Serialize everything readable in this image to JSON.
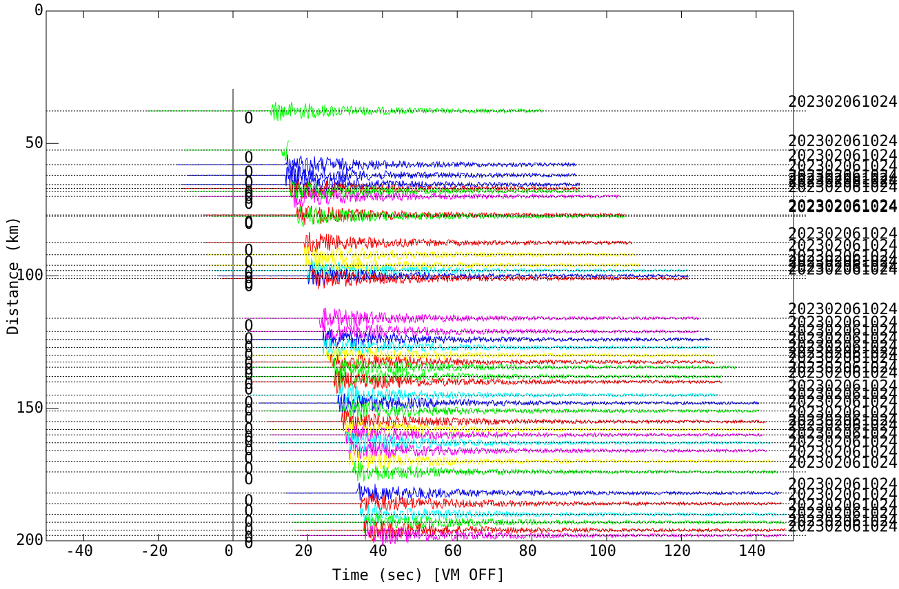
{
  "chart_data": {
    "type": "record-section",
    "x_label": "Time (sec)",
    "x_note": "[VM OFF]",
    "y_label": "Distance (km)",
    "xlim": [
      -50,
      150
    ],
    "ylim": [
      0,
      200
    ],
    "xticks": [
      -40,
      -20,
      0,
      20,
      40,
      60,
      80,
      100,
      120,
      140
    ],
    "yticks": [
      0,
      50,
      100,
      150,
      200
    ],
    "pick_label": "O",
    "pick_time": 2,
    "traces": [
      {
        "distance": 37.7,
        "color": "#00ff00",
        "start": -23,
        "onset": 10,
        "end": 83,
        "label": "202302061024"
      },
      {
        "distance": 52.5,
        "color": "#00ff00",
        "start": -13,
        "onset": 13,
        "end": 15,
        "label": "202302061024"
      },
      {
        "distance": 58,
        "color": "#0000ff",
        "start": -15,
        "onset": 14,
        "end": 92,
        "label": "202302061024"
      },
      {
        "distance": 62,
        "color": "#0000ff",
        "start": -12,
        "onset": 14,
        "end": 92,
        "label": "202302061024"
      },
      {
        "distance": 65.5,
        "color": "#0000ff",
        "start": -14,
        "onset": 15,
        "end": 93,
        "label": "202302061024"
      },
      {
        "distance": 67,
        "color": "#ff0000",
        "start": -14,
        "onset": 15,
        "end": 93,
        "label": "202302061024"
      },
      {
        "distance": 68,
        "color": "#00ff00",
        "start": -12,
        "onset": 15,
        "end": 93,
        "label": "202302061024"
      },
      {
        "distance": 70,
        "color": "#ff00ff",
        "start": -9,
        "onset": 16,
        "end": 104,
        "label": "202302061024"
      },
      {
        "distance": 77,
        "color": "#ff0000",
        "start": -8,
        "onset": 17,
        "end": 105,
        "label": "202302061024"
      },
      {
        "distance": 77.5,
        "color": "#00ff00",
        "start": -6,
        "onset": 17,
        "end": 105,
        "label": "202302061024"
      },
      {
        "distance": 87.5,
        "color": "#ff0000",
        "start": -8,
        "onset": 19,
        "end": 107,
        "label": "202302061024"
      },
      {
        "distance": 92,
        "color": "#ffff00",
        "start": -7,
        "onset": 19,
        "end": 108,
        "label": "202302061024"
      },
      {
        "distance": 96,
        "color": "#ffff00",
        "start": -6,
        "onset": 20,
        "end": 109,
        "label": "202302061024"
      },
      {
        "distance": 98,
        "color": "#00ffff",
        "start": -5,
        "onset": 20,
        "end": 122,
        "label": "202302061024"
      },
      {
        "distance": 100,
        "color": "#0000ff",
        "start": -4,
        "onset": 20,
        "end": 122,
        "label": "202302061024"
      },
      {
        "distance": 101,
        "color": "#ff0000",
        "start": -3,
        "onset": 21,
        "end": 122,
        "label": "202302061024"
      },
      {
        "distance": 116,
        "color": "#ff00ff",
        "start": 3,
        "onset": 23,
        "end": 125,
        "label": "202302061024"
      },
      {
        "distance": 121,
        "color": "#ff00ff",
        "start": 4,
        "onset": 24,
        "end": 125,
        "label": "202302061024"
      },
      {
        "distance": 124,
        "color": "#0000ff",
        "start": 5,
        "onset": 24,
        "end": 128,
        "label": "202302061024"
      },
      {
        "distance": 127,
        "color": "#00ffff",
        "start": 6,
        "onset": 24,
        "end": 128,
        "label": "202302061024"
      },
      {
        "distance": 130,
        "color": "#ffff00",
        "start": 5,
        "onset": 25,
        "end": 129,
        "label": "202302061024"
      },
      {
        "distance": 132.5,
        "color": "#ff0000",
        "start": 4,
        "onset": 26,
        "end": 129,
        "label": "202302061024"
      },
      {
        "distance": 134.5,
        "color": "#00ff00",
        "start": 5,
        "onset": 27,
        "end": 135,
        "label": "202302061024"
      },
      {
        "distance": 138,
        "color": "#00ff00",
        "start": 3,
        "onset": 27,
        "end": 131,
        "label": "202302061024"
      },
      {
        "distance": 140,
        "color": "#ff0000",
        "start": 5,
        "onset": 27,
        "end": 131,
        "label": "202302061024"
      },
      {
        "distance": 145,
        "color": "#00ffff",
        "start": 5,
        "onset": 28,
        "end": 130,
        "label": "202302061024"
      },
      {
        "distance": 148,
        "color": "#0000ff",
        "start": 7,
        "onset": 28,
        "end": 141,
        "label": "202302061024"
      },
      {
        "distance": 151,
        "color": "#00ff00",
        "start": 8,
        "onset": 29,
        "end": 141,
        "label": "202302061024"
      },
      {
        "distance": 155,
        "color": "#ff0000",
        "start": 9,
        "onset": 29,
        "end": 143,
        "label": "202302061024"
      },
      {
        "distance": 158,
        "color": "#ffff00",
        "start": 10,
        "onset": 30,
        "end": 142,
        "label": "202302061024"
      },
      {
        "distance": 160,
        "color": "#ff00ff",
        "start": 10,
        "onset": 30,
        "end": 142,
        "label": "202302061024"
      },
      {
        "distance": 163,
        "color": "#00ffff",
        "start": 12,
        "onset": 30,
        "end": 144,
        "label": "202302061024"
      },
      {
        "distance": 166,
        "color": "#ff00ff",
        "start": 12,
        "onset": 31,
        "end": 143,
        "label": "202302061024"
      },
      {
        "distance": 170,
        "color": "#ffff00",
        "start": 13,
        "onset": 31,
        "end": 145,
        "label": "202302061024"
      },
      {
        "distance": 174,
        "color": "#00ff00",
        "start": 14,
        "onset": 32,
        "end": 146,
        "label": "202302061024"
      },
      {
        "distance": 182,
        "color": "#0000ff",
        "start": 14,
        "onset": 33,
        "end": 147,
        "label": "202302061024"
      },
      {
        "distance": 186,
        "color": "#ff0000",
        "start": 15,
        "onset": 34,
        "end": 147,
        "label": "202302061024"
      },
      {
        "distance": 190,
        "color": "#00ffff",
        "start": 15,
        "onset": 34,
        "end": 148,
        "label": "202302061024"
      },
      {
        "distance": 193,
        "color": "#00ff00",
        "start": 16,
        "onset": 35,
        "end": 148,
        "label": "202302061024"
      },
      {
        "distance": 196,
        "color": "#ff0000",
        "start": 17,
        "onset": 35,
        "end": 148,
        "label": "202302061024"
      },
      {
        "distance": 198,
        "color": "#ff00ff",
        "start": 18,
        "onset": 36,
        "end": 148,
        "label": "202302061024"
      }
    ]
  }
}
